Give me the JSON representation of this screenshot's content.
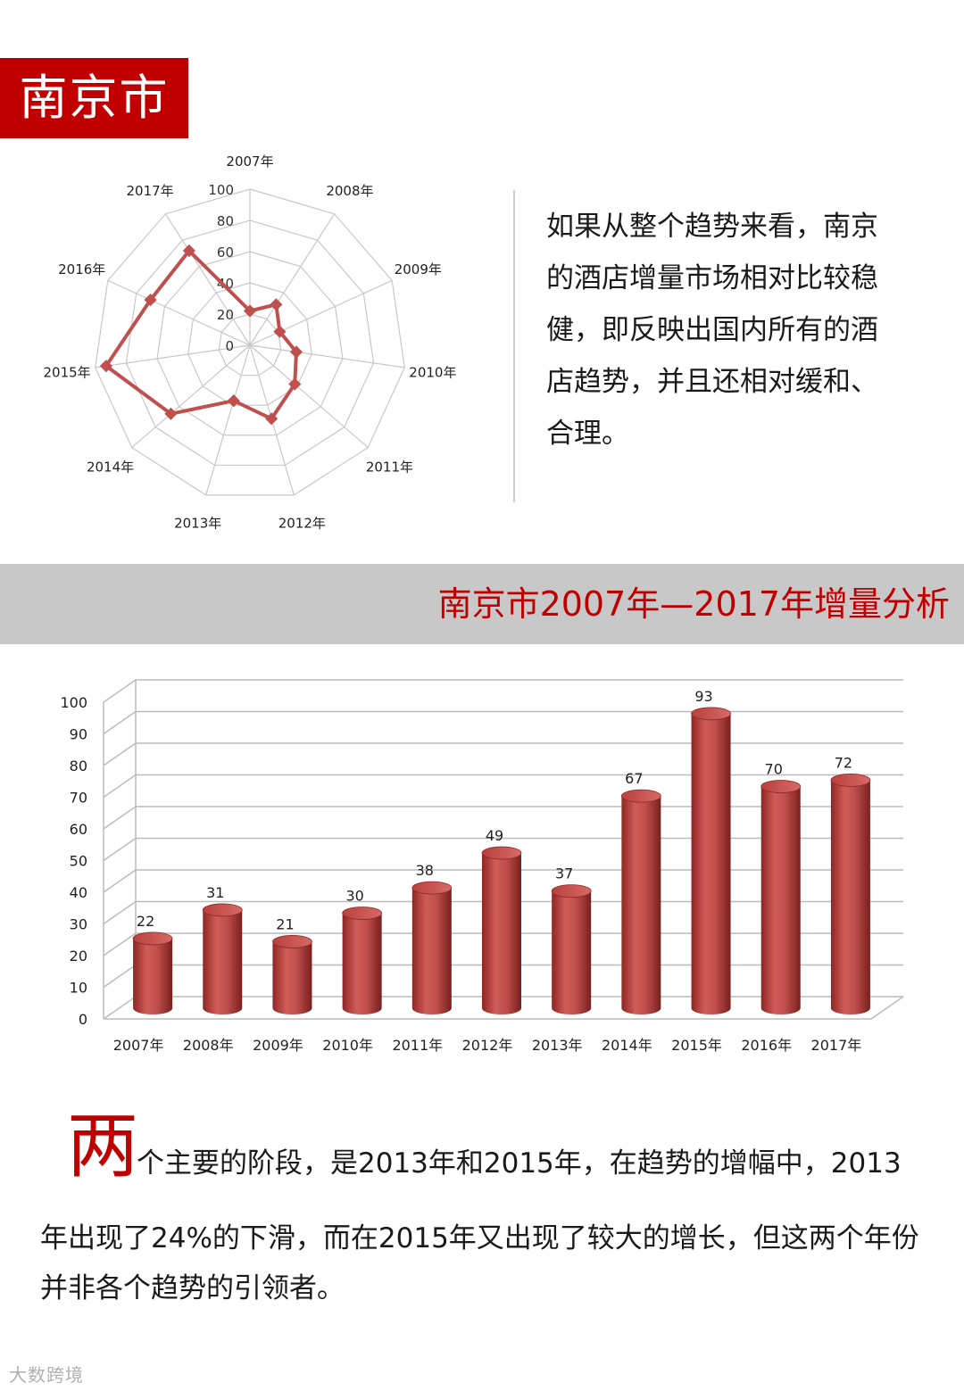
{
  "header": {
    "title": "南京市"
  },
  "description": "如果从整个趋势来看，南京的酒店增量市场相对比较稳健，即反映出国内所有的酒店趋势，并且还相对缓和、合理。",
  "band": {
    "title": "南京市2007年—2017年增量分析"
  },
  "paragraph": {
    "initial": "两",
    "first_line": "个主要的阶段，是2013年和2015年，在趋势的增幅中，2013",
    "rest": "年出现了24%的下滑，而在2015年又出现了较大的增长，但这两个年份并非各个趋势的引领者。"
  },
  "watermark": "大数跨境",
  "colors": {
    "accent": "#c00000",
    "radar_line": "#c0504d",
    "bar": "#c0504d",
    "band": "#c8c8c8"
  },
  "chart_data": [
    {
      "type": "radar",
      "categories": [
        "2007年",
        "2008年",
        "2009年",
        "2010年",
        "2011年",
        "2012年",
        "2013年",
        "2014年",
        "2015年",
        "2016年",
        "2017年"
      ],
      "values": [
        22,
        31,
        21,
        30,
        38,
        49,
        37,
        67,
        93,
        70,
        72
      ],
      "ticks": [
        "0",
        "20",
        "40",
        "60",
        "80",
        "100"
      ],
      "ylim": [
        0,
        100
      ]
    },
    {
      "type": "bar",
      "style": "3d-cylinder",
      "categories": [
        "2007年",
        "2008年",
        "2009年",
        "2010年",
        "2011年",
        "2012年",
        "2013年",
        "2014年",
        "2015年",
        "2016年",
        "2017年"
      ],
      "values": [
        22,
        31,
        21,
        30,
        38,
        49,
        37,
        67,
        93,
        70,
        72
      ],
      "value_labels": [
        "22",
        "31",
        "21",
        "30",
        "38",
        "49",
        "37",
        "67",
        "93",
        "70",
        "72"
      ],
      "yticks": [
        "0",
        "10",
        "20",
        "30",
        "40",
        "50",
        "60",
        "70",
        "80",
        "90",
        "100"
      ],
      "ylim": [
        0,
        100
      ],
      "grid": true
    }
  ]
}
